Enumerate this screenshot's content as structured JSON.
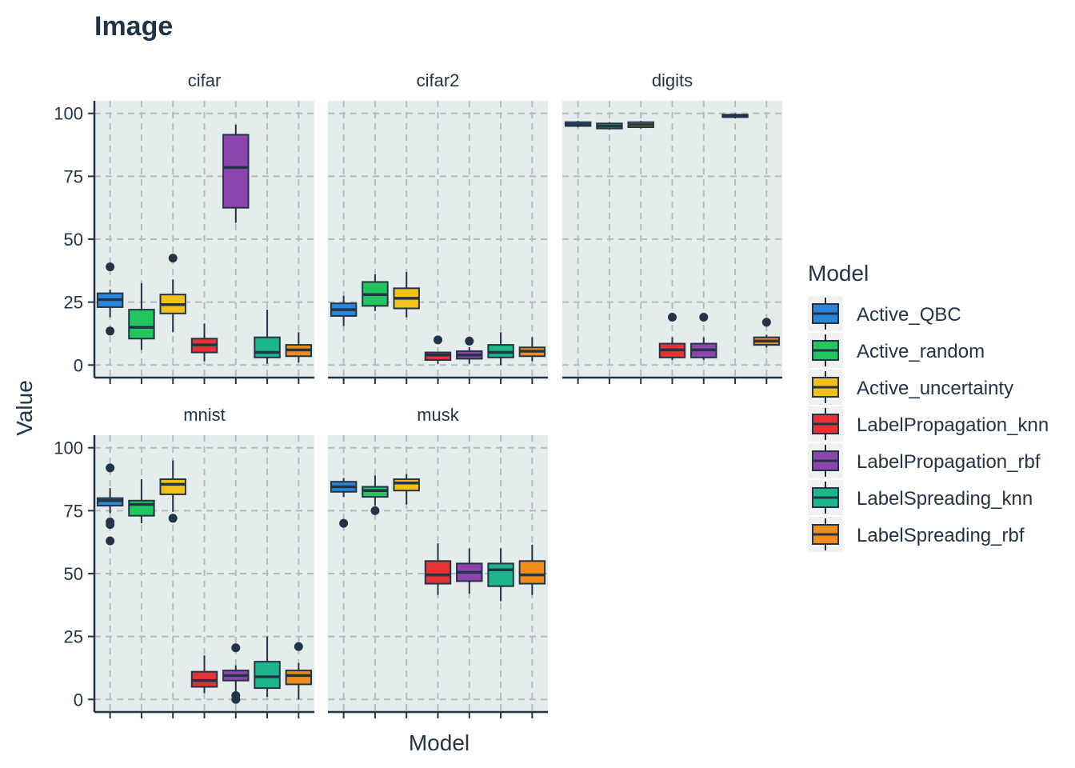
{
  "chart_data": {
    "type": "boxplot",
    "title": "Image",
    "xlabel": "Model",
    "ylabel": "Value",
    "ylim": [
      -5,
      105
    ],
    "yticks": [
      0,
      25,
      50,
      75,
      100
    ],
    "grid": true,
    "legend_position": "right",
    "legend": {
      "title": "Model",
      "items": [
        {
          "name": "Active_QBC",
          "color": "#2b86d9"
        },
        {
          "name": "Active_random",
          "color": "#22c55e"
        },
        {
          "name": "Active_uncertainty",
          "color": "#f2c21a"
        },
        {
          "name": "LabelPropagation_knn",
          "color": "#e63232"
        },
        {
          "name": "LabelPropagation_rbf",
          "color": "#8e44ad"
        },
        {
          "name": "LabelSpreading_knn",
          "color": "#1fb58a"
        },
        {
          "name": "LabelSpreading_rbf",
          "color": "#f08c1a"
        }
      ]
    },
    "panels": [
      {
        "name": "cifar",
        "boxes": [
          {
            "model": "Active_QBC",
            "min": 19,
            "q1": 23,
            "median": 26,
            "q3": 28.5,
            "max": 30,
            "outliers": [
              39,
              13.5
            ]
          },
          {
            "model": "Active_random",
            "min": 6,
            "q1": 10.5,
            "median": 15,
            "q3": 22,
            "max": 32.5,
            "outliers": []
          },
          {
            "model": "Active_uncertainty",
            "min": 13,
            "q1": 20.5,
            "median": 24,
            "q3": 28,
            "max": 34,
            "outliers": [
              42.5
            ]
          },
          {
            "model": "LabelPropagation_knn",
            "min": 1.5,
            "q1": 5,
            "median": 8,
            "q3": 10.5,
            "max": 16.5,
            "outliers": []
          },
          {
            "model": "LabelPropagation_rbf",
            "min": 56.5,
            "q1": 62.5,
            "median": 78.5,
            "q3": 91.5,
            "max": 95.5,
            "outliers": []
          },
          {
            "model": "LabelSpreading_knn",
            "min": 0.5,
            "q1": 3,
            "median": 5,
            "q3": 11,
            "max": 22,
            "outliers": []
          },
          {
            "model": "LabelSpreading_rbf",
            "min": 1,
            "q1": 3.5,
            "median": 6,
            "q3": 8,
            "max": 13,
            "outliers": []
          }
        ]
      },
      {
        "name": "cifar2",
        "boxes": [
          {
            "model": "Active_QBC",
            "min": 15.5,
            "q1": 19.5,
            "median": 22,
            "q3": 24.5,
            "max": 27.5,
            "outliers": []
          },
          {
            "model": "Active_random",
            "min": 21.5,
            "q1": 23.5,
            "median": 28,
            "q3": 33,
            "max": 36,
            "outliers": []
          },
          {
            "model": "Active_uncertainty",
            "min": 19,
            "q1": 22.5,
            "median": 26.5,
            "q3": 30.5,
            "max": 37,
            "outliers": []
          },
          {
            "model": "LabelPropagation_knn",
            "min": 0.5,
            "q1": 2,
            "median": 4,
            "q3": 5,
            "max": 5,
            "outliers": [
              10
            ]
          },
          {
            "model": "LabelPropagation_rbf",
            "min": 0.5,
            "q1": 2.5,
            "median": 4,
            "q3": 5.5,
            "max": 7,
            "outliers": [
              9.5
            ]
          },
          {
            "model": "LabelSpreading_knn",
            "min": 0,
            "q1": 3,
            "median": 5,
            "q3": 8,
            "max": 13,
            "outliers": []
          },
          {
            "model": "LabelSpreading_rbf",
            "min": 1.5,
            "q1": 3.5,
            "median": 5.5,
            "q3": 7,
            "max": 11,
            "outliers": []
          }
        ]
      },
      {
        "name": "digits",
        "boxes": [
          {
            "model": "Active_QBC",
            "min": 94.5,
            "q1": 95,
            "median": 95.5,
            "q3": 96.5,
            "max": 97,
            "outliers": []
          },
          {
            "model": "Active_random",
            "min": 93.5,
            "q1": 94,
            "median": 95,
            "q3": 96,
            "max": 96.5,
            "outliers": []
          },
          {
            "model": "Active_uncertainty",
            "min": 94,
            "q1": 94.5,
            "median": 95.5,
            "q3": 96.5,
            "max": 97,
            "outliers": []
          },
          {
            "model": "LabelPropagation_knn",
            "min": 2,
            "q1": 3,
            "median": 6,
            "q3": 8.5,
            "max": 11,
            "outliers": [
              19
            ]
          },
          {
            "model": "LabelPropagation_rbf",
            "min": 2,
            "q1": 3,
            "median": 6,
            "q3": 8.5,
            "max": 11,
            "outliers": [
              19
            ]
          },
          {
            "model": "LabelSpreading_knn",
            "min": 98,
            "q1": 98.5,
            "median": 99,
            "q3": 99.5,
            "max": 100,
            "outliers": []
          },
          {
            "model": "LabelSpreading_rbf",
            "min": 7,
            "q1": 8,
            "median": 9.5,
            "q3": 11,
            "max": 12,
            "outliers": [
              17
            ]
          }
        ]
      },
      {
        "name": "mnist",
        "boxes": [
          {
            "model": "Active_QBC",
            "min": 74,
            "q1": 77,
            "median": 79,
            "q3": 80,
            "max": 84,
            "outliers": [
              92,
              70.5,
              69.5,
              63
            ]
          },
          {
            "model": "Active_random",
            "min": 70,
            "q1": 73,
            "median": 77.5,
            "q3": 79,
            "max": 87.5,
            "outliers": []
          },
          {
            "model": "Active_uncertainty",
            "min": 74.5,
            "q1": 81.5,
            "median": 85.5,
            "q3": 87.5,
            "max": 95,
            "outliers": [
              72
            ]
          },
          {
            "model": "LabelPropagation_knn",
            "min": 2.5,
            "q1": 5,
            "median": 7.5,
            "q3": 11,
            "max": 17.5,
            "outliers": []
          },
          {
            "model": "LabelPropagation_rbf",
            "min": 2.5,
            "q1": 7.5,
            "median": 9.5,
            "q3": 11.5,
            "max": 13.5,
            "outliers": [
              20.5,
              1.5,
              0
            ]
          },
          {
            "model": "LabelSpreading_knn",
            "min": 1,
            "q1": 4.5,
            "median": 9,
            "q3": 15,
            "max": 25,
            "outliers": []
          },
          {
            "model": "LabelSpreading_rbf",
            "min": 0,
            "q1": 6,
            "median": 9.5,
            "q3": 11.5,
            "max": 14.5,
            "outliers": [
              21
            ]
          }
        ]
      },
      {
        "name": "musk",
        "boxes": [
          {
            "model": "Active_QBC",
            "min": 80.5,
            "q1": 82.5,
            "median": 84.5,
            "q3": 86.5,
            "max": 88,
            "outliers": [
              70
            ]
          },
          {
            "model": "Active_random",
            "min": 77,
            "q1": 80.5,
            "median": 83,
            "q3": 84.5,
            "max": 89,
            "outliers": [
              75
            ]
          },
          {
            "model": "Active_uncertainty",
            "min": 77.5,
            "q1": 83,
            "median": 86,
            "q3": 87.5,
            "max": 89.5,
            "outliers": []
          },
          {
            "model": "LabelPropagation_knn",
            "min": 41.5,
            "q1": 46,
            "median": 49.5,
            "q3": 55,
            "max": 62,
            "outliers": []
          },
          {
            "model": "LabelPropagation_rbf",
            "min": 42,
            "q1": 47,
            "median": 50.5,
            "q3": 54,
            "max": 60,
            "outliers": []
          },
          {
            "model": "LabelSpreading_knn",
            "min": 39,
            "q1": 45,
            "median": 51.5,
            "q3": 54,
            "max": 60,
            "outliers": []
          },
          {
            "model": "LabelSpreading_rbf",
            "min": 41.5,
            "q1": 46,
            "median": 49.5,
            "q3": 55,
            "max": 61.5,
            "outliers": []
          }
        ]
      }
    ]
  }
}
